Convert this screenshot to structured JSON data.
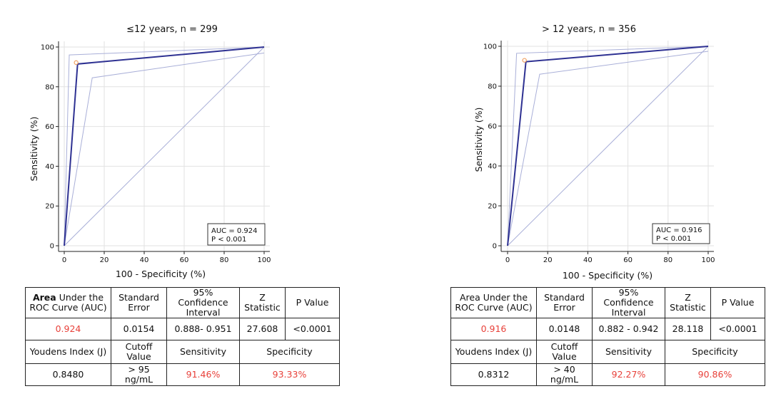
{
  "panels": [
    {
      "title": "≤12 years, n = 299",
      "xlabel": "100 - Specificity (%)",
      "ylabel": "Sensitivity (%)",
      "legend": {
        "auc": "AUC = 0.924",
        "p": "P < 0.001"
      },
      "table": {
        "h_auc_bold": "Area",
        "h_auc_rest": " Under the\nROC Curve (AUC)",
        "h_se": "Standard\nError",
        "h_ci": "95%\nConfidence\nInterval",
        "h_z": "Z\nStatistic",
        "h_p": "P Value",
        "auc": "0.924",
        "se": "0.0154",
        "ci": "0.888- 0.951",
        "z": "27.608",
        "p": "<0.0001",
        "h_j": "Youdens Index (J)",
        "h_cut": "Cutoff\nValue",
        "h_sens": "Sensitivity",
        "h_spec": "Specificity",
        "j": "0.8480",
        "cut": "> 95\nng/mL",
        "sens": "91.46%",
        "spec": "93.33%"
      }
    },
    {
      "title": "> 12  years, n = 356",
      "xlabel": "100 - Specificity (%)",
      "ylabel": "Sensitivity (%)",
      "legend": {
        "auc": "AUC = 0.916",
        "p": "P < 0.001"
      },
      "table": {
        "h_auc_bold": "",
        "h_auc_rest": "Area Under the\nROC Curve (AUC)",
        "h_se": "Standard\nError",
        "h_ci": "95%\nConfidence\nInterval",
        "h_z": "Z\nStatistic",
        "h_p": "P Value",
        "auc": "0.916",
        "se": "0.0148",
        "ci": "0.882 - 0.942",
        "z": "28.118",
        "p": "<0.0001",
        "h_j": "Youdens Index (J)",
        "h_cut": "Cutoff\nValue",
        "h_sens": "Sensitivity",
        "h_spec": "Specificity",
        "j": "0.8312",
        "cut": "> 40\nng/mL",
        "sens": "92.27%",
        "spec": "90.86%"
      }
    }
  ],
  "chart_data": [
    {
      "type": "line",
      "title": "≤12 years, n = 299",
      "xlabel": "100 - Specificity (%)",
      "ylabel": "Sensitivity (%)",
      "xlim": [
        0,
        100
      ],
      "ylim": [
        0,
        100
      ],
      "xticks": [
        0,
        20,
        40,
        60,
        80,
        100
      ],
      "yticks": [
        0,
        20,
        40,
        60,
        80,
        100
      ],
      "grid": true,
      "legend_position": "bottom-right",
      "series": [
        {
          "x": [
            0,
            6.67,
            100
          ],
          "y": [
            0,
            91.46,
            100
          ],
          "color": "#2e3192"
        },
        {
          "x": [
            0,
            2.5,
            100
          ],
          "y": [
            0,
            96,
            100
          ],
          "color": "#a9afd8"
        },
        {
          "x": [
            0,
            14,
            100
          ],
          "y": [
            0,
            84.5,
            97
          ],
          "color": "#a9afd8"
        },
        {
          "x": [
            0,
            100
          ],
          "y": [
            0,
            100
          ],
          "color": "#a9afd8"
        }
      ],
      "cutoff_point": {
        "x": 6.67,
        "y": 91.46,
        "color": "#f0a060"
      }
    },
    {
      "type": "line",
      "title": "> 12  years, n = 356",
      "xlabel": "100 - Specificity (%)",
      "ylabel": "Sensitivity (%)",
      "xlim": [
        0,
        100
      ],
      "ylim": [
        0,
        100
      ],
      "xticks": [
        0,
        20,
        40,
        60,
        80,
        100
      ],
      "yticks": [
        0,
        20,
        40,
        60,
        80,
        100
      ],
      "grid": true,
      "legend_position": "bottom-right",
      "series": [
        {
          "x": [
            0,
            9.14,
            100
          ],
          "y": [
            0,
            92.27,
            100
          ],
          "color": "#2e3192"
        },
        {
          "x": [
            0,
            4.5,
            100
          ],
          "y": [
            0,
            96.5,
            100
          ],
          "color": "#a9afd8"
        },
        {
          "x": [
            0,
            16,
            100
          ],
          "y": [
            0,
            86,
            97.5
          ],
          "color": "#a9afd8"
        },
        {
          "x": [
            0,
            100
          ],
          "y": [
            0,
            100
          ],
          "color": "#a9afd8"
        }
      ],
      "cutoff_point": {
        "x": 9.14,
        "y": 92.27,
        "color": "#f0a060"
      }
    }
  ]
}
